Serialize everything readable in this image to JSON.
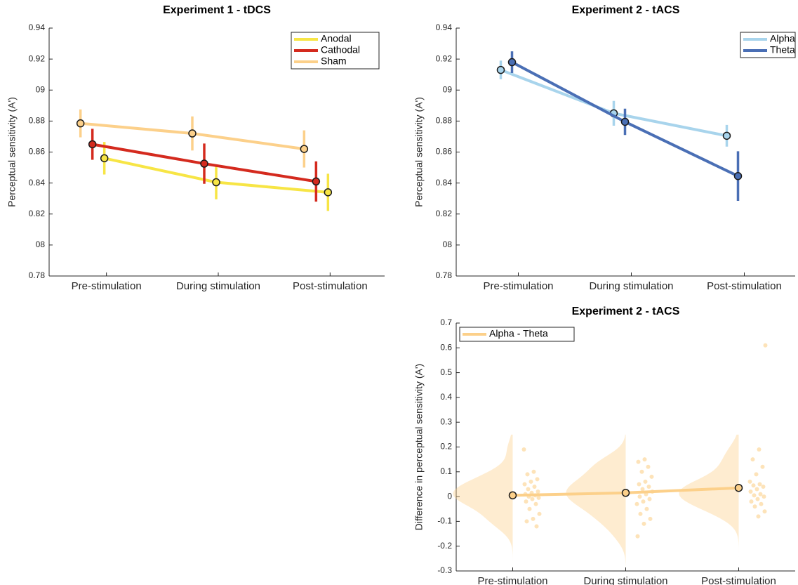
{
  "chart_data": [
    {
      "type": "line",
      "title": "Experiment 1 - tDCS",
      "y_label": "Perceptual sensitivity (A')",
      "categories": [
        "Pre-stimulation",
        "During stimulation",
        "Post-stimulation"
      ],
      "ylim": [
        0.78,
        0.94
      ],
      "yticks": [
        0.78,
        {
          "value": 0.8,
          "label": "08"
        },
        0.82,
        0.84,
        0.86,
        0.88,
        {
          "value": 0.9,
          "label": "09"
        },
        0.92,
        0.94
      ],
      "legend": "upper right",
      "series": [
        {
          "name": "Anodal",
          "color": "#f7e545",
          "values": [
            0.856,
            0.8405,
            0.834
          ],
          "errors": [
            0.0105,
            0.011,
            0.012
          ]
        },
        {
          "name": "Cathodal",
          "color": "#d42a1e",
          "values": [
            0.865,
            0.8525,
            0.841
          ],
          "errors": [
            0.01,
            0.013,
            0.013
          ]
        },
        {
          "name": "Sham",
          "color": "#fcd08a",
          "values": [
            0.8785,
            0.872,
            0.862
          ],
          "errors": [
            0.009,
            0.011,
            0.012
          ]
        }
      ]
    },
    {
      "type": "line",
      "title": "Experiment 2 - tACS",
      "y_label": "Perceptual sensitivity (A')",
      "categories": [
        "Pre-stimulation",
        "During stimulation",
        "Post-stimulation"
      ],
      "ylim": [
        0.78,
        0.94
      ],
      "yticks": [
        0.78,
        {
          "value": 0.8,
          "label": "08"
        },
        0.82,
        0.84,
        0.86,
        0.88,
        {
          "value": 0.9,
          "label": "09"
        },
        0.92,
        0.94
      ],
      "legend": "upper right",
      "series": [
        {
          "name": "Alpha",
          "color": "#a8d4ec",
          "values": [
            0.913,
            0.885,
            0.8705
          ],
          "errors": [
            0.006,
            0.008,
            0.007
          ]
        },
        {
          "name": "Theta",
          "color": "#4a6fb5",
          "values": [
            0.918,
            0.8795,
            0.8445
          ],
          "errors": [
            0.007,
            0.0085,
            0.016
          ]
        }
      ]
    },
    {
      "type": "raincloud",
      "title": "Experiment 2 - tACS",
      "y_label": "Difference in perceptual sensitivity (A')",
      "categories": [
        "Pre-stimulation",
        "During stimulation",
        "Post-stimulation"
      ],
      "ylim": [
        -0.3,
        0.7
      ],
      "yticks": [
        -0.3,
        -0.2,
        -0.1,
        0,
        0.1,
        0.2,
        0.3,
        0.4,
        0.5,
        0.6,
        0.7
      ],
      "legend": "upper left",
      "series": [
        {
          "name": "Alpha - Theta",
          "color": "#fcd08a",
          "values": [
            0.005,
            0.015,
            0.035
          ],
          "points": [
            [
              0.19,
              0.1,
              0.09,
              0.07,
              0.06,
              0.05,
              0.04,
              0.03,
              0.02,
              0.015,
              0.01,
              0.005,
              0,
              -0.005,
              -0.01,
              -0.02,
              -0.03,
              -0.05,
              -0.07,
              -0.09,
              -0.1,
              -0.12
            ],
            [
              0.15,
              0.14,
              0.12,
              0.1,
              0.08,
              0.06,
              0.05,
              0.04,
              0.03,
              0.02,
              0.01,
              0,
              -0.01,
              -0.02,
              -0.03,
              -0.05,
              -0.07,
              -0.09,
              -0.11,
              -0.16
            ],
            [
              0.61,
              0.19,
              0.15,
              0.12,
              0.09,
              0.06,
              0.05,
              0.045,
              0.04,
              0.03,
              0.02,
              0.01,
              0.005,
              0,
              -0.01,
              -0.02,
              -0.03,
              -0.04,
              -0.06,
              -0.08
            ]
          ]
        }
      ]
    }
  ]
}
